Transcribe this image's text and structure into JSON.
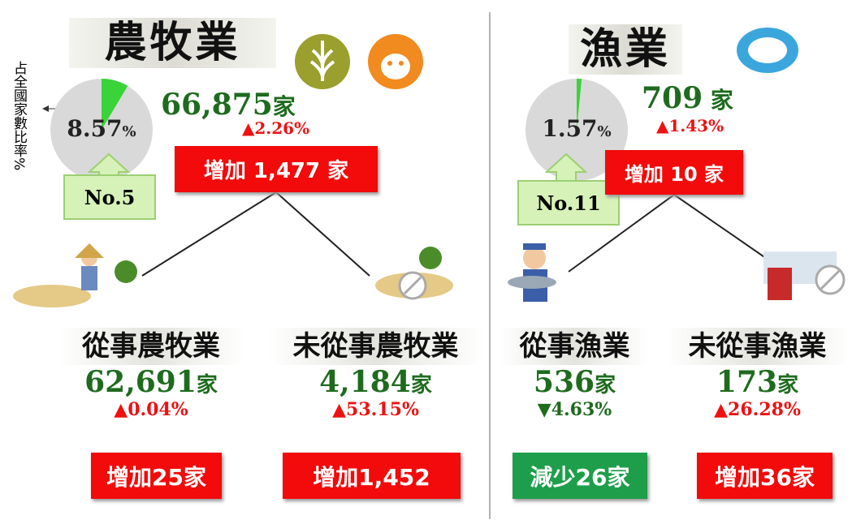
{
  "side_label": "占全國家數比率%",
  "sections": [
    {
      "title": "農牧業",
      "share": 8.57,
      "share_label": "8.57",
      "share_unit": "%",
      "rank": "No.5",
      "total": "66,875",
      "unit": "家",
      "change": "▲2.26%",
      "increase": "增加 1,477 家",
      "groups": [
        {
          "name": "從事農牧業",
          "count": "62,691",
          "unit": "家",
          "change": "▲0.04%",
          "box": "增加25家"
        },
        {
          "name": "未從事農牧業",
          "count": "4,184",
          "unit": "家",
          "change": "▲53.15%",
          "box": "增加1,452"
        }
      ]
    },
    {
      "title": "漁業",
      "share": 1.57,
      "share_label": "1.57",
      "share_unit": "%",
      "rank": "No.11",
      "total": "709",
      "unit": " 家",
      "change": "▲1.43%",
      "increase": "增加 10 家",
      "groups": [
        {
          "name": "從事漁業",
          "count": "536",
          "unit": "家",
          "change": "▼4.63%",
          "box": "減少26家"
        },
        {
          "name": "未從事漁業",
          "count": "173",
          "unit": "家",
          "change": "▲26.28%",
          "box": "增加36家"
        }
      ]
    }
  ]
}
